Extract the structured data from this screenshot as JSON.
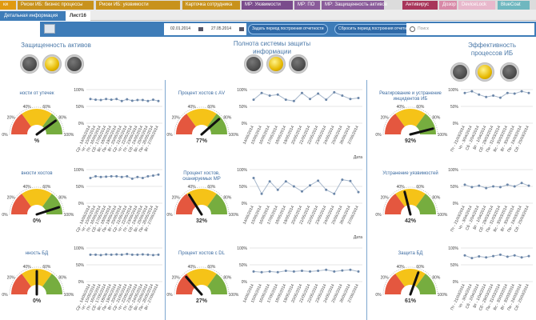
{
  "tabs": [
    {
      "label": "ки",
      "color": "#e09a10"
    },
    {
      "label": "Риски ИБ: бизнес процессы",
      "color": "#c8921c"
    },
    {
      "label": "Риски ИБ: уязвимости",
      "color": "#c8921c"
    },
    {
      "label": "Карточка сотрудника",
      "color": "#c8921c"
    },
    {
      "label": "MP: Уязвимости",
      "color": "#7a4c8c"
    },
    {
      "label": "MP: ПО",
      "color": "#8a5c9a"
    },
    {
      "label": "MP: Защищенность активов",
      "color": "#8a5c9a"
    },
    {
      "label": "Антивирус",
      "color": "#a8365a"
    },
    {
      "label": "Дозор",
      "color": "#d88aa8"
    },
    {
      "label": "DeviceLock",
      "color": "#e8b8cc"
    },
    {
      "label": "BlueCoat",
      "color": "#6fb7bf"
    }
  ],
  "subtabs": [
    "Детальная информация",
    "Лист16"
  ],
  "toolbar": {
    "date_from": "02.01.2014",
    "date_to": "27.05.2014",
    "set_period": "Задать период построения отчетности",
    "reset_period": "Сбросить период построения отчетности",
    "search_placeholder": "Поиск"
  },
  "sections": [
    "Защищенность активов",
    "Полнота системы защиты информации",
    "Эффективность процессов ИБ"
  ],
  "lights": [
    1,
    1,
    1
  ],
  "gauges": [
    [
      {
        "title": "ности от утечек",
        "value": "%",
        "needle": 80
      },
      {
        "title": "вности хостов",
        "value": "0%",
        "needle": 90
      },
      {
        "title": "нность БД",
        "value": "0%",
        "needle": 50
      }
    ],
    [
      {
        "title": "Процент хостов с АV",
        "value": "77%",
        "needle": 77
      },
      {
        "title": "Процент хостов,\nсканируемых MP",
        "value": "32%",
        "needle": 32
      },
      {
        "title": "Процент хостов с DL",
        "value": "27%",
        "needle": 27
      }
    ],
    [
      {
        "title": "Реагирование и устранение\nинцидентов ИБ",
        "value": "92%",
        "needle": 92
      },
      {
        "title": "Устранение уязвимостей",
        "value": "42%",
        "needle": 42
      },
      {
        "title": "Защита БД",
        "value": "61%",
        "needle": 61
      }
    ]
  ],
  "gauge_ticks": [
    "0%",
    "20%",
    "40%",
    "60%",
    "80%",
    "100%"
  ],
  "chart_axis": [
    "100%",
    "50%",
    "0%"
  ],
  "x_label": "Дата",
  "dates_weekday": [
    "Ср - 14/05/2014",
    "Чт - 15/05/2014",
    "Пт - 16/05/2014",
    "Сб - 17/05/2014",
    "Вс - 18/05/2014",
    "Пн - 19/05/2014",
    "Вт - 20/05/2014",
    "Ср - 21/05/2014",
    "Чт - 22/05/2014",
    "Пт - 23/05/2014",
    "Сб - 24/05/2014",
    "Вс - 25/05/2014",
    "Пн - 26/05/2014",
    "Вт - 27/05/2014"
  ],
  "dates": [
    "14/05/2014",
    "15/05/2014",
    "16/05/2014",
    "17/05/2014",
    "18/05/2014",
    "19/05/2014",
    "20/05/2014",
    "21/05/2014",
    "22/05/2014",
    "23/05/2014",
    "24/05/2014",
    "25/05/2014",
    "26/05/2014",
    "27/05/2014"
  ],
  "dates_right": [
    "Пт - 21/03/2014",
    "Чт - 3/04/2014",
    "Сб - 2/04/2014",
    "Вт - 1/04/2014",
    "Сб - 29/03/2014",
    "Пн - 31/03/2014",
    "Вс - 30/03/2014",
    "Вт - 30/03/2014",
    "Пн - 24/03/2014",
    "Сб - 25/03/2014"
  ],
  "chart_data": [
    {
      "type": "line",
      "values": [
        [
          72,
          70,
          69,
          72,
          70,
          72,
          66,
          71,
          67,
          69,
          69,
          66,
          70,
          66
        ],
        [
          75,
          80,
          78,
          79,
          80,
          80,
          78,
          80,
          73,
          78,
          75,
          80,
          82,
          85
        ],
        [
          80,
          80,
          79,
          81,
          80,
          81,
          80,
          82,
          80,
          80,
          81,
          80,
          79,
          80
        ]
      ]
    },
    {
      "type": "line",
      "values": [
        [
          70,
          90,
          82,
          85,
          70,
          66,
          90,
          72,
          88,
          70,
          92,
          82,
          72,
          75
        ],
        [
          75,
          28,
          65,
          40,
          65,
          50,
          35,
          53,
          67,
          40,
          28,
          70,
          66,
          33
        ],
        [
          30,
          28,
          30,
          28,
          32,
          30,
          32,
          30,
          32,
          35,
          30,
          33,
          35,
          30
        ]
      ]
    },
    {
      "type": "line",
      "values": [
        [
          90,
          95,
          85,
          78,
          82,
          76,
          90,
          88,
          95,
          90
        ],
        [
          55,
          48,
          52,
          45,
          50,
          48,
          55,
          50,
          60,
          52
        ],
        [
          78,
          70,
          75,
          72,
          76,
          80,
          74,
          78,
          72,
          76
        ]
      ]
    }
  ]
}
